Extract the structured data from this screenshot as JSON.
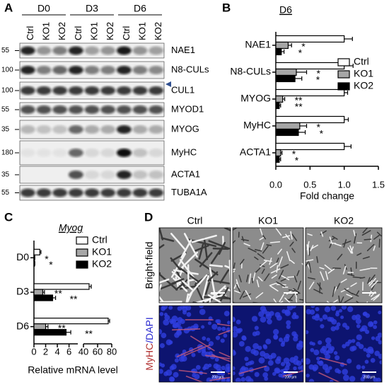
{
  "panels": {
    "a": "A",
    "b": "B",
    "c": "C",
    "d": "D"
  },
  "blot": {
    "groups": [
      "D0",
      "D3",
      "D6"
    ],
    "lanes": [
      "Ctrl",
      "KO1",
      "KO2"
    ],
    "rows": [
      {
        "marker": 55,
        "label": "NAE1"
      },
      {
        "marker": 100,
        "label": "N8-CULs"
      },
      {
        "marker": 100,
        "label": "CUL1"
      },
      {
        "marker": 55,
        "label": "MYOD1"
      },
      {
        "marker": 35,
        "label": "MYOG"
      },
      {
        "marker": 180,
        "label": "MyHC"
      },
      {
        "marker": 35,
        "label": "ACTA1"
      },
      {
        "marker": 55,
        "label": "TUBA1A"
      }
    ]
  },
  "chart_data": [
    {
      "type": "bar",
      "orientation": "horizontal",
      "title": "D6",
      "xlabel": "Fold change",
      "categories": [
        "NAE1",
        "N8-CULs",
        "MYOG",
        "MyHC",
        "ACTA1"
      ],
      "series": [
        {
          "name": "Ctrl",
          "color": "#ffffff",
          "values": [
            1.0,
            1.0,
            1.0,
            1.0,
            1.0
          ],
          "errors": [
            0.12,
            0.13,
            0.05,
            0.06,
            0.1
          ]
        },
        {
          "name": "KO1",
          "color": "#a6a6a6",
          "values": [
            0.18,
            0.3,
            0.1,
            0.35,
            0.07
          ],
          "errors": [
            0.05,
            0.15,
            0.03,
            0.1,
            0.02
          ],
          "annotations": [
            "*",
            "*",
            "**",
            "*",
            "*"
          ]
        },
        {
          "name": "KO2",
          "color": "#000000",
          "values": [
            0.08,
            0.28,
            0.05,
            0.33,
            0.05
          ],
          "errors": [
            0.04,
            0.1,
            0.02,
            0.1,
            0.02
          ],
          "annotations": [
            "*",
            "*",
            "**",
            "*",
            "*"
          ]
        }
      ],
      "xlim": [
        0,
        1.5
      ],
      "xticks": [
        {
          "value": 0,
          "label": "0.0"
        },
        0.5,
        {
          "value": 1,
          "label": "1.0"
        },
        1.5
      ],
      "legend": "upper right"
    },
    {
      "type": "bar",
      "orientation": "horizontal",
      "title": "Myog",
      "xlabel": "Relative mRNA level",
      "categories": [
        "D0",
        "D3",
        "D6"
      ],
      "series": [
        {
          "name": "Ctrl",
          "color": "#ffffff",
          "values": [
            1.0,
            48,
            75
          ],
          "errors": [
            0.2,
            3,
            2
          ]
        },
        {
          "name": "KO1",
          "color": "#a6a6a6",
          "values": [
            0.1,
            1.5,
            2.0
          ],
          "errors": [
            0.05,
            0.3,
            0.4
          ],
          "annotations": [
            "*",
            "**",
            "**"
          ]
        },
        {
          "name": "KO2",
          "color": "#000000",
          "values": [
            0.1,
            3.2,
            5.5
          ],
          "errors": [
            0.05,
            0.5,
            0.8
          ],
          "annotations": [
            "*",
            "**",
            "**"
          ]
        }
      ],
      "xlim": [
        0,
        7.5
      ],
      "xticks": [
        0,
        2,
        4,
        6
      ],
      "x2lim": [
        40,
        80
      ],
      "x2ticks": [
        40,
        60,
        80
      ],
      "legend": "upper right"
    }
  ],
  "micrographs": {
    "columns": [
      "Ctrl",
      "KO1",
      "KO2"
    ],
    "bright_label": "Bright-field",
    "fluor_label": [
      "MyHC",
      "/DAPI"
    ],
    "scale_bar": "200 μm"
  }
}
